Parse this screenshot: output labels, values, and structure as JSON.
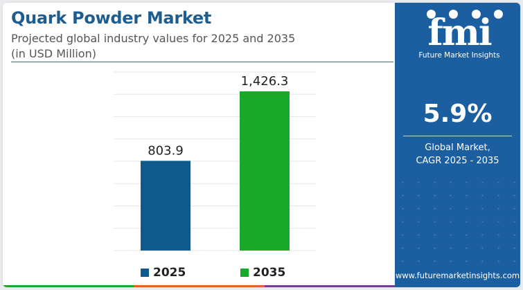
{
  "header": {
    "title": "Quark Powder Market",
    "subtitle_line1": "Projected global industry values for 2025 and 2035",
    "subtitle_line2": "(in USD Million)"
  },
  "chart_data": {
    "type": "bar",
    "categories": [
      "2025",
      "2035"
    ],
    "values": [
      803.9,
      1426.3
    ],
    "value_labels": [
      "803.9",
      "1,426.3"
    ],
    "colors": [
      "#0e5a8a",
      "#1aa82a"
    ],
    "ylim": [
      0,
      1600
    ],
    "grid": true,
    "legend": "bottom",
    "legend_entries": [
      "2025",
      "2035"
    ]
  },
  "side_panel": {
    "logo_text": "fmi",
    "logo_tagline": "Future Market Insights",
    "cagr_value": "5.9%",
    "cagr_label_line1": "Global Market,",
    "cagr_label_line2": "CAGR 2025 - 2035",
    "website": "www.futuremarketinsights.com"
  },
  "colors": {
    "title": "#1e5d8f",
    "panel_bg": "#1b5fa0",
    "bar_2025": "#0e5a8a",
    "bar_2035": "#1aa82a",
    "bottom_bar": [
      "#1aa82a",
      "#e0632a",
      "#7a3d96"
    ]
  }
}
